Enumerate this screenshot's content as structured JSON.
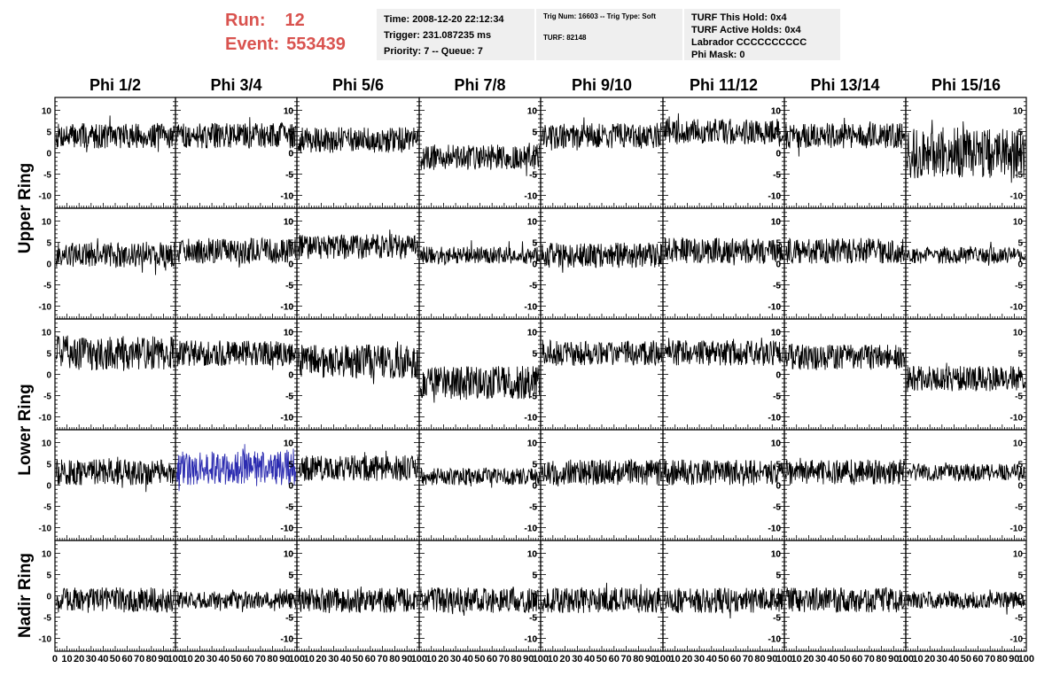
{
  "header": {
    "run_label": "Run:",
    "run_value": "12",
    "event_label": "Event:",
    "event_value": "553439"
  },
  "time_box": {
    "line1": "Time: 2008-12-20 22:12:34",
    "line2": "Trigger: 231.087235 ms",
    "line3": "Priority: 7 -- Queue: 7"
  },
  "trig_box": {
    "line1": "Trig Num: 16603 -- Trig Type: Soft",
    "line2": "TURF: 82148"
  },
  "turf_box": {
    "line1": "TURF This Hold: 0x4",
    "line2": "TURF Active Holds: 0x4",
    "line3": "Labrador CCCCCCCCCC",
    "line4": "Phi Mask: 0"
  },
  "columns": [
    "Phi 1/2",
    "Phi 3/4",
    "Phi 5/6",
    "Phi 7/8",
    "Phi 9/10",
    "Phi 11/12",
    "Phi 13/14",
    "Phi 15/16"
  ],
  "rows": [
    "Upper Ring",
    "Lower Ring",
    "Nadir Ring"
  ],
  "x_tick_labels": [
    "0 10 20 30 40 50 60 70 80 90 100",
    "10 20 30 40 50 60 70 80 90 100",
    "10 20 30 40 50 60 70 80 90 100",
    "10 20 30 40 50 60 70 80 90 100",
    "10 20 30 40 50 60 70 80 90 100",
    "10 20 30 40 50 60 70 80 90 100",
    "10 20 30 40 50 60 70 80 90 100",
    "0 10 20 30 40 50 60 70 80 90 100"
  ],
  "colors": {
    "trace": "#000000",
    "highlight_trace": "#2b2bb0",
    "header_red": "#d9534f",
    "box_bg": "#efefef"
  },
  "chart_data": {
    "type": "line",
    "layout": "grid of 5 rows x 8 columns of waveform panels",
    "xlim": [
      0,
      100
    ],
    "ylim": [
      -13,
      13
    ],
    "y_ticks": [
      -10,
      -5,
      0,
      5,
      10
    ],
    "x_ticks": [
      0,
      10,
      20,
      30,
      40,
      50,
      60,
      70,
      80,
      90,
      100
    ],
    "grid": false,
    "panel_baselines": [
      [
        4,
        4,
        3,
        -1,
        4,
        5,
        4,
        0
      ],
      [
        2,
        3,
        4,
        2,
        2,
        3,
        3,
        2
      ],
      [
        5,
        5,
        3,
        -2,
        5,
        5,
        4,
        -1
      ],
      [
        3,
        4,
        4,
        2,
        3,
        3,
        3,
        3
      ],
      [
        -1,
        -1,
        -1,
        -1,
        -1,
        -1,
        -1,
        -1
      ]
    ],
    "panel_amplitudes": [
      [
        3,
        3,
        3,
        3,
        3,
        3,
        3,
        6
      ],
      [
        3,
        3,
        3,
        2,
        3,
        3,
        3,
        2
      ],
      [
        4,
        3,
        4,
        4,
        3,
        3,
        3,
        3
      ],
      [
        3,
        4,
        3,
        2,
        3,
        3,
        3,
        2
      ],
      [
        3,
        2,
        3,
        3,
        3,
        3,
        3,
        2
      ]
    ],
    "highlighted_panel": {
      "row": 3,
      "col": 1
    }
  }
}
